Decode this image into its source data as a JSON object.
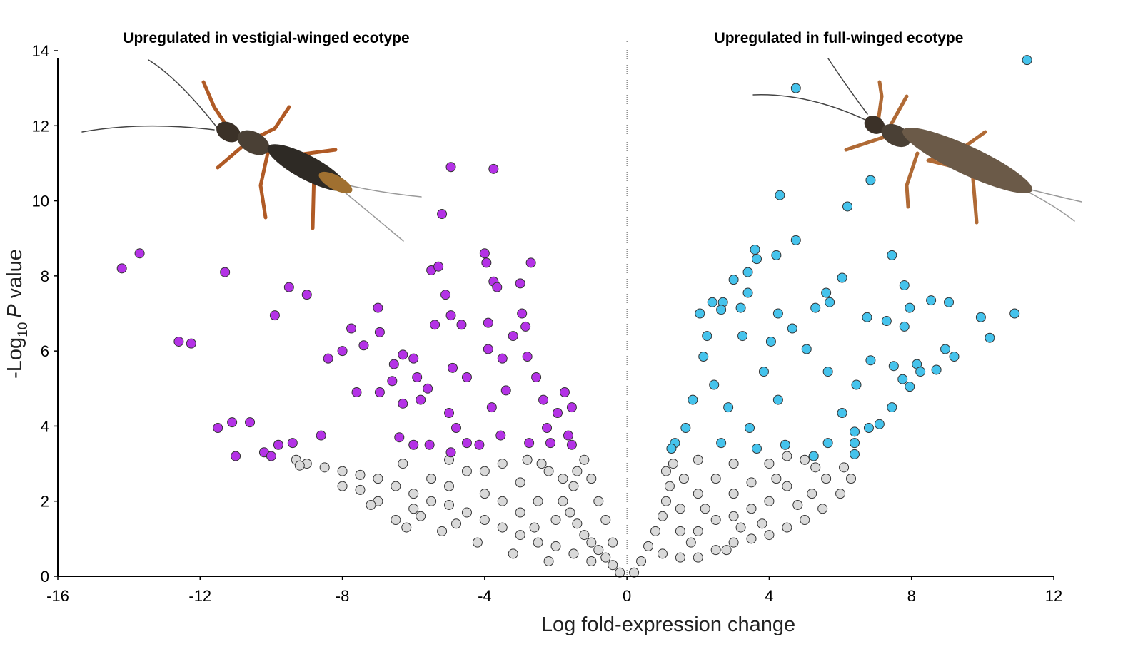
{
  "chart_data": {
    "type": "scatter",
    "annotations": [
      "Upregulated in vestigial-winged ecotype",
      "Upregulated in full-winged ecotype"
    ],
    "xlabel": "Log fold-expression change",
    "ylabel": {
      "text": "-Log",
      "subscript": "10",
      "italic": "P",
      "rest": "value"
    },
    "xlim": [
      -16,
      12
    ],
    "ylim": [
      0,
      14
    ],
    "xticks": [
      -16,
      -12,
      -8,
      -4,
      0,
      4,
      8,
      12
    ],
    "yticks": [
      0,
      2,
      4,
      6,
      8,
      10,
      12,
      14
    ],
    "reference_line_x": 0,
    "series": [
      {
        "color": "#d9d9d9",
        "x": [
          -0.2,
          -0.4,
          -0.6,
          -0.8,
          -1,
          -1.2,
          -1.4,
          -1.6,
          -1.8,
          -1.5,
          -1.4,
          -1.2,
          -1.0,
          -0.8,
          -0.6,
          -0.4,
          -1,
          -1.5,
          -2,
          -2.5,
          -3,
          -3.5,
          -4,
          -4.5,
          -5,
          -5.5,
          -6,
          -6.5,
          -7,
          -7.5,
          -8,
          -8.5,
          -9,
          -9.3,
          -9.2,
          -2,
          -2.5,
          -3,
          -3.5,
          -2.2,
          -2.8,
          -4,
          -4.5,
          -5,
          -5.5,
          -6,
          -6.5,
          -7,
          -7.5,
          -8,
          -6.2,
          -5.2,
          -3.2,
          -2.2,
          -4.2,
          -3.5,
          -3,
          -2.6,
          -1.8,
          -2.4,
          -4.0,
          -6.3,
          -5.8,
          -7.2,
          -5,
          -4.8,
          0.2,
          0.4,
          0.6,
          0.8,
          1,
          1.1,
          1.2,
          1.1,
          1.3,
          1.0,
          1.5,
          2,
          2.5,
          3,
          3.5,
          4,
          4.5,
          5,
          5.5,
          6,
          6.3,
          5.3,
          5.0,
          4.5,
          4,
          3.5,
          3,
          2.5,
          2,
          1.5,
          2,
          2.5,
          3,
          3.5,
          4,
          4.5,
          2,
          1.6,
          3,
          5.2,
          4.8,
          2.8,
          1.5,
          3.8,
          4.2,
          5.6,
          6.1,
          2.2,
          1.8,
          3.2
        ],
        "y": [
          0.1,
          0.3,
          0.5,
          0.7,
          0.9,
          1.1,
          1.4,
          1.7,
          2.0,
          2.4,
          2.8,
          3.1,
          2.6,
          2.0,
          1.5,
          0.9,
          0.4,
          0.6,
          0.8,
          0.9,
          1.1,
          1.3,
          1.5,
          1.7,
          1.9,
          2.0,
          2.2,
          2.4,
          2.6,
          2.7,
          2.8,
          2.9,
          3.0,
          3.1,
          2.95,
          1.5,
          2.0,
          2.5,
          3.0,
          2.8,
          3.1,
          2.2,
          2.8,
          3.1,
          2.6,
          1.8,
          1.5,
          2.0,
          2.3,
          2.4,
          1.3,
          1.2,
          0.6,
          0.4,
          0.9,
          2.0,
          1.7,
          1.3,
          2.6,
          3.0,
          2.8,
          3.0,
          1.6,
          1.9,
          2.4,
          1.4,
          0.1,
          0.4,
          0.8,
          1.2,
          1.6,
          2.0,
          2.4,
          2.8,
          3.0,
          0.6,
          0.5,
          0.5,
          0.7,
          0.9,
          1.0,
          1.1,
          1.3,
          1.5,
          1.8,
          2.2,
          2.6,
          2.9,
          3.1,
          2.4,
          2.0,
          2.5,
          3.0,
          2.6,
          2.2,
          1.8,
          1.2,
          1.5,
          1.6,
          1.8,
          3.0,
          3.2,
          3.1,
          2.6,
          2.2,
          2.2,
          1.9,
          0.7,
          1.2,
          1.4,
          2.6,
          2.6,
          2.9,
          1.8,
          0.9,
          1.3
        ]
      },
      {
        "color": "#b432e6",
        "x": [
          -14.2,
          -13.7,
          -12.6,
          -12.25,
          -11.3,
          -11.5,
          -11.1,
          -11.0,
          -10.6,
          -10.2,
          -10.0,
          -9.9,
          -9.8,
          -9.5,
          -9.4,
          -9.0,
          -8.6,
          -8.4,
          -8.0,
          -7.75,
          -7.6,
          -7.4,
          -7.0,
          -6.95,
          -6.95,
          -6.6,
          -6.55,
          -6.3,
          -6.0,
          -6.4,
          -6.3,
          -5.9,
          -5.8,
          -5.6,
          -5.55,
          -5.5,
          -5.3,
          -5.2,
          -5.1,
          -4.95,
          -5.4,
          -4.95,
          -4.9,
          -4.65,
          -4.5,
          -5.0,
          -4.8,
          -4.5,
          -4.0,
          -3.95,
          -3.9,
          -3.9,
          -3.75,
          -3.75,
          -3.65,
          -3.8,
          -3.5,
          -3.4,
          -3.2,
          -3.0,
          -2.7,
          -2.95,
          -2.85,
          -2.8,
          -2.55,
          -2.35,
          -2.25,
          -1.95,
          -1.75,
          -1.55,
          -1.65,
          -2.15,
          -2.75,
          -3.55,
          -4.15,
          -4.95,
          -6.0,
          -1.55
        ],
        "y": [
          8.2,
          8.6,
          6.25,
          6.2,
          8.1,
          3.95,
          4.1,
          3.2,
          4.1,
          3.3,
          3.2,
          6.95,
          3.5,
          7.7,
          3.55,
          7.5,
          3.75,
          5.8,
          6.0,
          6.6,
          4.9,
          6.15,
          7.15,
          6.5,
          4.9,
          5.2,
          5.65,
          5.9,
          5.8,
          3.7,
          4.6,
          5.3,
          4.7,
          5.0,
          3.5,
          8.15,
          8.25,
          9.65,
          7.5,
          10.9,
          6.7,
          6.95,
          5.55,
          6.7,
          5.3,
          4.35,
          3.95,
          3.55,
          8.6,
          8.35,
          6.75,
          6.05,
          10.85,
          7.85,
          7.7,
          4.5,
          5.8,
          4.95,
          6.4,
          7.8,
          8.35,
          7.0,
          6.65,
          5.85,
          5.3,
          4.7,
          3.95,
          4.35,
          4.9,
          4.5,
          3.75,
          3.55,
          3.55,
          3.75,
          3.5,
          3.3,
          3.5,
          3.5
        ]
      },
      {
        "color": "#45c3ec",
        "x": [
          11.25,
          4.75,
          6.85,
          6.2,
          4.3,
          4.75,
          3.6,
          4.2,
          3.65,
          3.4,
          3.0,
          3.4,
          6.05,
          7.45,
          7.8,
          5.6,
          5.7,
          2.7,
          2.4,
          2.05,
          2.65,
          3.2,
          4.25,
          5.3,
          6.75,
          7.3,
          7.8,
          7.95,
          8.55,
          9.05,
          9.95,
          10.9,
          10.2,
          8.95,
          9.2,
          8.7,
          8.15,
          8.25,
          7.75,
          7.5,
          7.95,
          7.45,
          7.1,
          6.8,
          6.4,
          6.4,
          6.4,
          5.65,
          5.25,
          6.05,
          6.45,
          5.65,
          5.05,
          4.65,
          4.05,
          3.85,
          4.25,
          3.45,
          2.85,
          2.45,
          2.15,
          1.85,
          1.65,
          1.35,
          1.25,
          2.65,
          4.45,
          3.25,
          2.25,
          3.65,
          6.85
        ],
        "y": [
          13.75,
          13.0,
          10.55,
          9.85,
          10.15,
          8.95,
          8.7,
          8.55,
          8.45,
          8.1,
          7.9,
          7.55,
          7.95,
          8.55,
          7.75,
          7.55,
          7.3,
          7.3,
          7.3,
          7.0,
          7.1,
          7.15,
          7.0,
          7.15,
          6.9,
          6.8,
          6.65,
          7.15,
          7.35,
          7.3,
          6.9,
          7.0,
          6.35,
          6.05,
          5.85,
          5.5,
          5.65,
          5.45,
          5.25,
          5.6,
          5.05,
          4.5,
          4.05,
          3.95,
          3.25,
          3.55,
          3.85,
          3.55,
          3.2,
          4.35,
          5.1,
          5.45,
          6.05,
          6.6,
          6.25,
          5.45,
          4.7,
          3.95,
          4.5,
          5.1,
          5.85,
          4.7,
          3.95,
          3.55,
          3.4,
          3.55,
          3.5,
          6.4,
          6.4,
          3.4,
          5.75
        ]
      }
    ]
  }
}
